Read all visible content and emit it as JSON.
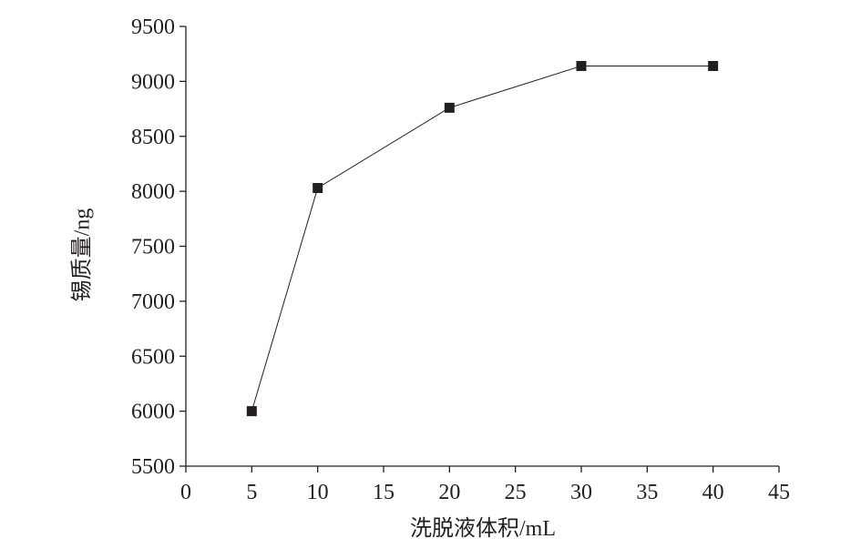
{
  "chart_data": {
    "type": "line",
    "x_label": "洗脱液体积/mL",
    "y_label": "锡质量/ng",
    "x": [
      5,
      10,
      20,
      30,
      40
    ],
    "series": [
      {
        "values": [
          6000,
          8030,
          8760,
          9140,
          9140
        ],
        "color": "#231f20"
      }
    ],
    "xlim": [
      0,
      45
    ],
    "xticks": [
      0,
      5,
      10,
      15,
      20,
      25,
      30,
      35,
      40,
      45
    ],
    "ylim": [
      5500,
      9500
    ],
    "yticks": [
      5500,
      6000,
      6500,
      7000,
      7500,
      8000,
      8500,
      9000,
      9500
    ],
    "grid": false
  }
}
